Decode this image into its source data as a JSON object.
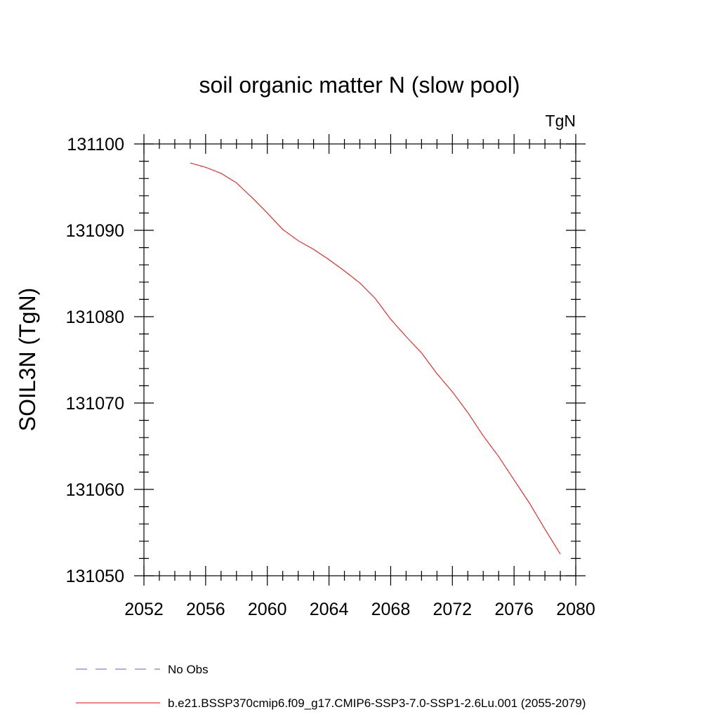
{
  "chart_data": {
    "type": "line",
    "title": "soil organic matter N (slow pool)",
    "units_label": "TgN",
    "ylabel": "SOIL3N  (TgN)",
    "xlabel": "",
    "xlim": [
      2052,
      2080
    ],
    "ylim": [
      131050,
      131100
    ],
    "xticks_major": [
      2052,
      2056,
      2060,
      2064,
      2068,
      2072,
      2076,
      2080
    ],
    "xtick_labels": [
      "2052",
      "2056",
      "2060",
      "2064",
      "2068",
      "2072",
      "2076",
      "2080"
    ],
    "xticks_minor_step": 1,
    "yticks_major": [
      131050,
      131060,
      131070,
      131080,
      131090,
      131100
    ],
    "ytick_labels": [
      "131050",
      "131060",
      "131070",
      "131080",
      "131090",
      "131100"
    ],
    "yticks_minor_step": 2,
    "grid": false,
    "legend_position": "bottom",
    "series": [
      {
        "name": "b.e21.BSSP370cmip6.f09_g17.CMIP6-SSP3-7.0-SSP1-2.6Lu.001 (2055-2079)",
        "color": "#ff0000",
        "dash": "solid",
        "x": [
          2055,
          2056,
          2057,
          2058,
          2059,
          2060,
          2061,
          2062,
          2063,
          2064,
          2065,
          2066,
          2067,
          2068,
          2069,
          2070,
          2071,
          2072,
          2073,
          2074,
          2075,
          2076,
          2077,
          2078,
          2079
        ],
        "y": [
          131097.8,
          131097.3,
          131096.6,
          131095.5,
          131093.8,
          131092.0,
          131090.1,
          131088.8,
          131087.8,
          131086.6,
          131085.3,
          131083.9,
          131082.1,
          131079.7,
          131077.7,
          131075.8,
          131073.4,
          131071.3,
          131068.9,
          131066.2,
          131063.8,
          131061.1,
          131058.4,
          131055.4,
          131052.5
        ]
      }
    ],
    "legend": [
      {
        "label": "No Obs",
        "color": "#6a5acd",
        "dash": "dashed"
      },
      {
        "label": "b.e21.BSSP370cmip6.f09_g17.CMIP6-SSP3-7.0-SSP1-2.6Lu.001 (2055-2079)",
        "color": "#ff0000",
        "dash": "solid"
      }
    ]
  }
}
